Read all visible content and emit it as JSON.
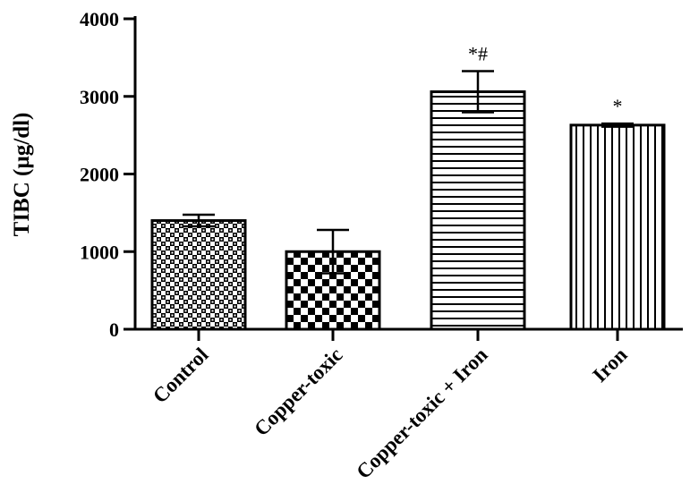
{
  "chart_data": {
    "type": "bar",
    "title": "",
    "xlabel": "",
    "ylabel": "TIBC (µg/dl)",
    "ylim": [
      0,
      4000
    ],
    "yticks": [
      0,
      1000,
      2000,
      3000,
      4000
    ],
    "ytick_labels": [
      "0",
      "1000",
      "2000",
      "3000",
      "4000"
    ],
    "categories": [
      "Control",
      "Copper-toxic",
      "Copper-toxic + Iron",
      "Iron"
    ],
    "values": [
      1400,
      1000,
      3060,
      2630
    ],
    "errors": [
      75,
      280,
      265,
      20
    ],
    "annotations": [
      "",
      "",
      "*#",
      "*"
    ],
    "patterns": [
      "fine-checker",
      "coarse-checker",
      "horizontal-lines",
      "vertical-lines"
    ],
    "legend": "none",
    "grid": false
  }
}
